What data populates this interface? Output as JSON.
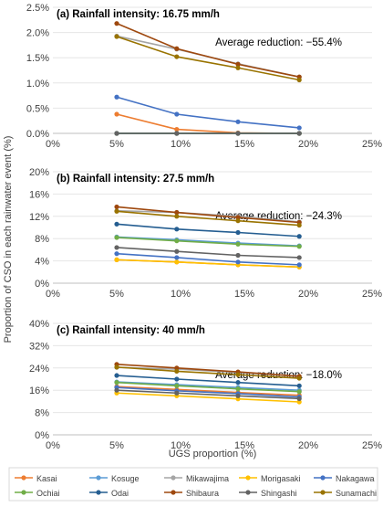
{
  "figure": {
    "ylabel": "Proportion of CSO in each rainwater event (%)",
    "xlabel": "UGS proportion (%)"
  },
  "chart_data": [
    {
      "type": "line",
      "title": "(a) Rainfall intensity: 16.75 mm/h",
      "annotation": "Average reduction: −55.4%",
      "xlim": [
        0,
        25
      ],
      "ylim": [
        0,
        2.5
      ],
      "x_ticks": [
        "0%",
        "5%",
        "10%",
        "15%",
        "20%",
        "25%"
      ],
      "y_ticks": [
        "0.0%",
        "0.5%",
        "1.0%",
        "1.5%",
        "2.0%",
        "2.5%"
      ],
      "series": [
        {
          "name": "Kasai",
          "x": [
            5,
            9.7,
            14.5,
            19.3
          ],
          "values": [
            0.38,
            0.08,
            0.01,
            0.0
          ]
        },
        {
          "name": "Kosuge",
          "x": [
            5,
            9.7,
            14.5,
            19.3
          ],
          "values": [
            0.0,
            0.0,
            0.0,
            0.0
          ]
        },
        {
          "name": "Mikawajima",
          "x": [
            5,
            9.7,
            14.5,
            19.3
          ],
          "values": [
            1.93,
            1.67,
            1.38,
            1.12
          ]
        },
        {
          "name": "Morigasaki",
          "x": [
            5,
            9.7,
            14.5,
            19.3
          ],
          "values": [
            0.0,
            0.0,
            0.0,
            0.0
          ]
        },
        {
          "name": "Nakagawa",
          "x": [
            5,
            9.7,
            14.5,
            19.3
          ],
          "values": [
            0.72,
            0.38,
            0.23,
            0.11
          ]
        },
        {
          "name": "Ochiai",
          "x": [
            5,
            9.7,
            14.5,
            19.3
          ],
          "values": [
            0.0,
            0.0,
            0.0,
            0.0
          ]
        },
        {
          "name": "Odai",
          "x": [
            5,
            9.7,
            14.5,
            19.3
          ],
          "values": [
            0.0,
            0.0,
            0.0,
            0.0
          ]
        },
        {
          "name": "Shibaura",
          "x": [
            5,
            9.7,
            14.5,
            19.3
          ],
          "values": [
            2.18,
            1.68,
            1.37,
            1.12
          ]
        },
        {
          "name": "Shingashi",
          "x": [
            5,
            9.7,
            14.5,
            19.3
          ],
          "values": [
            0.0,
            0.0,
            0.0,
            0.0
          ]
        },
        {
          "name": "Sunamachi",
          "x": [
            5,
            9.7,
            14.5,
            19.3
          ],
          "values": [
            1.92,
            1.52,
            1.3,
            1.06
          ]
        }
      ]
    },
    {
      "type": "line",
      "title": "(b) Rainfall intensity: 27.5 mm/h",
      "annotation": "Average reduction: −24.3%",
      "xlim": [
        0,
        25
      ],
      "ylim": [
        0,
        20
      ],
      "x_ticks": [
        "0%",
        "5%",
        "10%",
        "15%",
        "20%",
        "25%"
      ],
      "y_ticks": [
        "0%",
        "4%",
        "8%",
        "12%",
        "16%",
        "20%"
      ],
      "series": [
        {
          "name": "Kasai",
          "x": [
            5,
            9.7,
            14.5,
            19.3
          ],
          "values": [
            4.2,
            3.8,
            3.3,
            2.9
          ]
        },
        {
          "name": "Kosuge",
          "x": [
            5,
            9.7,
            14.5,
            19.3
          ],
          "values": [
            8.3,
            7.8,
            7.2,
            6.7
          ]
        },
        {
          "name": "Mikawajima",
          "x": [
            5,
            9.7,
            14.5,
            19.3
          ],
          "values": [
            13.0,
            12.7,
            12.0,
            11.0
          ]
        },
        {
          "name": "Morigasaki",
          "x": [
            5,
            9.7,
            14.5,
            19.3
          ],
          "values": [
            4.2,
            3.8,
            3.3,
            2.9
          ]
        },
        {
          "name": "Nakagawa",
          "x": [
            5,
            9.7,
            14.5,
            19.3
          ],
          "values": [
            5.3,
            4.6,
            3.8,
            3.3
          ]
        },
        {
          "name": "Ochiai",
          "x": [
            5,
            9.7,
            14.5,
            19.3
          ],
          "values": [
            8.2,
            7.6,
            7.0,
            6.6
          ]
        },
        {
          "name": "Odai",
          "x": [
            5,
            9.7,
            14.5,
            19.3
          ],
          "values": [
            10.6,
            9.7,
            9.1,
            8.4
          ]
        },
        {
          "name": "Shibaura",
          "x": [
            5,
            9.7,
            14.5,
            19.3
          ],
          "values": [
            13.7,
            12.7,
            11.8,
            10.9
          ]
        },
        {
          "name": "Shingashi",
          "x": [
            5,
            9.7,
            14.5,
            19.3
          ],
          "values": [
            6.4,
            5.7,
            5.0,
            4.6
          ]
        },
        {
          "name": "Sunamachi",
          "x": [
            5,
            9.7,
            14.5,
            19.3
          ],
          "values": [
            12.9,
            12.0,
            11.2,
            10.4
          ]
        }
      ]
    },
    {
      "type": "line",
      "title": "(c) Rainfall intensity: 40 mm/h",
      "annotation": "Average reduction: −18.0%",
      "xlim": [
        0,
        25
      ],
      "ylim": [
        0,
        40
      ],
      "x_ticks": [
        "0%",
        "5%",
        "10%",
        "15%",
        "20%",
        "25%"
      ],
      "y_ticks": [
        "0%",
        "8%",
        "16%",
        "24%",
        "32%",
        "40%"
      ],
      "series": [
        {
          "name": "Kasai",
          "x": [
            5,
            9.7,
            14.5,
            19.3
          ],
          "values": [
            17.3,
            16.3,
            15.2,
            14.2
          ]
        },
        {
          "name": "Kosuge",
          "x": [
            5,
            9.7,
            14.5,
            19.3
          ],
          "values": [
            19.0,
            18.0,
            17.0,
            16.0
          ]
        },
        {
          "name": "Mikawajima",
          "x": [
            5,
            9.7,
            14.5,
            19.3
          ],
          "values": [
            24.2,
            23.6,
            22.4,
            21.0
          ]
        },
        {
          "name": "Morigasaki",
          "x": [
            5,
            9.7,
            14.5,
            19.3
          ],
          "values": [
            15.0,
            14.0,
            12.9,
            11.8
          ]
        },
        {
          "name": "Nakagawa",
          "x": [
            5,
            9.7,
            14.5,
            19.3
          ],
          "values": [
            17.0,
            15.8,
            14.8,
            13.6
          ]
        },
        {
          "name": "Ochiai",
          "x": [
            5,
            9.7,
            14.5,
            19.3
          ],
          "values": [
            18.8,
            17.6,
            16.5,
            15.5
          ]
        },
        {
          "name": "Odai",
          "x": [
            5,
            9.7,
            14.5,
            19.3
          ],
          "values": [
            21.3,
            20.0,
            18.8,
            17.6
          ]
        },
        {
          "name": "Shibaura",
          "x": [
            5,
            9.7,
            14.5,
            19.3
          ],
          "values": [
            25.3,
            24.0,
            22.6,
            21.0
          ]
        },
        {
          "name": "Shingashi",
          "x": [
            5,
            9.7,
            14.5,
            19.3
          ],
          "values": [
            16.0,
            15.0,
            14.0,
            13.0
          ]
        },
        {
          "name": "Sunamachi",
          "x": [
            5,
            9.7,
            14.5,
            19.3
          ],
          "values": [
            24.3,
            22.8,
            21.6,
            20.3
          ]
        }
      ]
    }
  ],
  "legend": {
    "placement": "bottom",
    "items": [
      {
        "name": "Kasai",
        "color": "#ED7D31"
      },
      {
        "name": "Kosuge",
        "color": "#5B9BD5"
      },
      {
        "name": "Mikawajima",
        "color": "#A5A5A5"
      },
      {
        "name": "Morigasaki",
        "color": "#FFC000"
      },
      {
        "name": "Nakagawa",
        "color": "#4472C4"
      },
      {
        "name": "Ochiai",
        "color": "#70AD47"
      },
      {
        "name": "Odai",
        "color": "#255E91"
      },
      {
        "name": "Shibaura",
        "color": "#9E480E"
      },
      {
        "name": "Shingashi",
        "color": "#636363"
      },
      {
        "name": "Sunamachi",
        "color": "#997300"
      }
    ]
  }
}
